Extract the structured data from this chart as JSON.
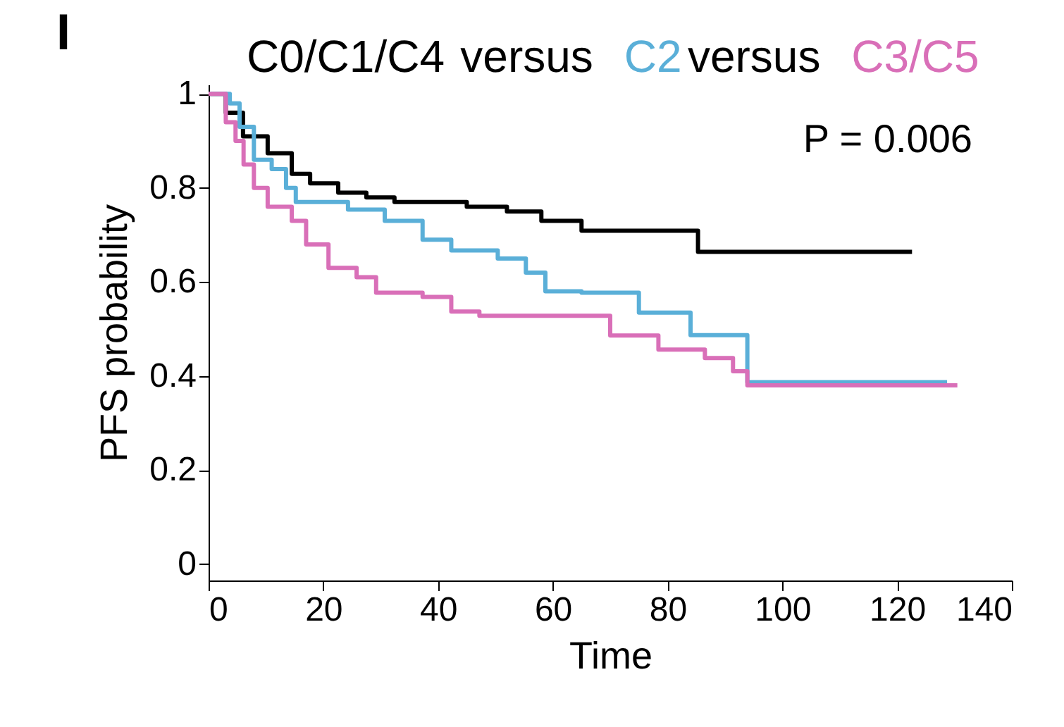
{
  "chart_data": {
    "type": "step",
    "xlabel": "Time",
    "ylabel": "PFS probability",
    "xlim": [
      0,
      140
    ],
    "ylim": [
      -0.035,
      1.02
    ],
    "xticks": [
      0,
      20,
      40,
      60,
      80,
      100,
      120,
      140
    ],
    "yticks": [
      0,
      0.2,
      0.4,
      0.6,
      0.8,
      1
    ],
    "grid": false,
    "legend": false,
    "marker": "none",
    "line_style": "solid",
    "annotations": [
      "I",
      "versus",
      "versus",
      "P = 0.006"
    ],
    "series": [
      {
        "name": "C0/C1/C4",
        "color": "#000000",
        "x": [
          0,
          3,
          6,
          10.3,
          14.5,
          17.7,
          22.6,
          27.5,
          32.4,
          40,
          45,
          52,
          58,
          65,
          85.3,
          122.6
        ],
        "values": [
          1,
          0.96,
          0.91,
          0.874,
          0.83,
          0.81,
          0.79,
          0.78,
          0.77,
          0.77,
          0.76,
          0.75,
          0.73,
          0.709,
          0.664,
          0.664
        ]
      },
      {
        "name": "C2",
        "color": "#5aafd8",
        "x": [
          0,
          3.7,
          5.4,
          7.9,
          11,
          13.5,
          15.2,
          24.3,
          30.7,
          37.3,
          42.3,
          50.4,
          55.3,
          58.7,
          65,
          75,
          84,
          93.9,
          128.7
        ],
        "values": [
          1,
          0.98,
          0.93,
          0.86,
          0.84,
          0.8,
          0.77,
          0.754,
          0.73,
          0.69,
          0.667,
          0.65,
          0.62,
          0.58,
          0.577,
          0.535,
          0.487,
          0.387,
          0.387
        ]
      },
      {
        "name": "C3/C5",
        "color": "#d96fb8",
        "x": [
          0,
          1.2,
          3,
          4.7,
          6.1,
          7.9,
          10.3,
          14.5,
          17,
          20.9,
          25.8,
          29.2,
          37.3,
          42.3,
          47.2,
          63.6,
          70,
          78.4,
          86.5,
          91.4,
          93.9,
          130.5
        ],
        "values": [
          1,
          1,
          0.94,
          0.9,
          0.85,
          0.8,
          0.76,
          0.73,
          0.68,
          0.63,
          0.61,
          0.577,
          0.568,
          0.537,
          0.528,
          0.528,
          0.486,
          0.456,
          0.438,
          0.41,
          0.38,
          0.38
        ]
      }
    ]
  }
}
